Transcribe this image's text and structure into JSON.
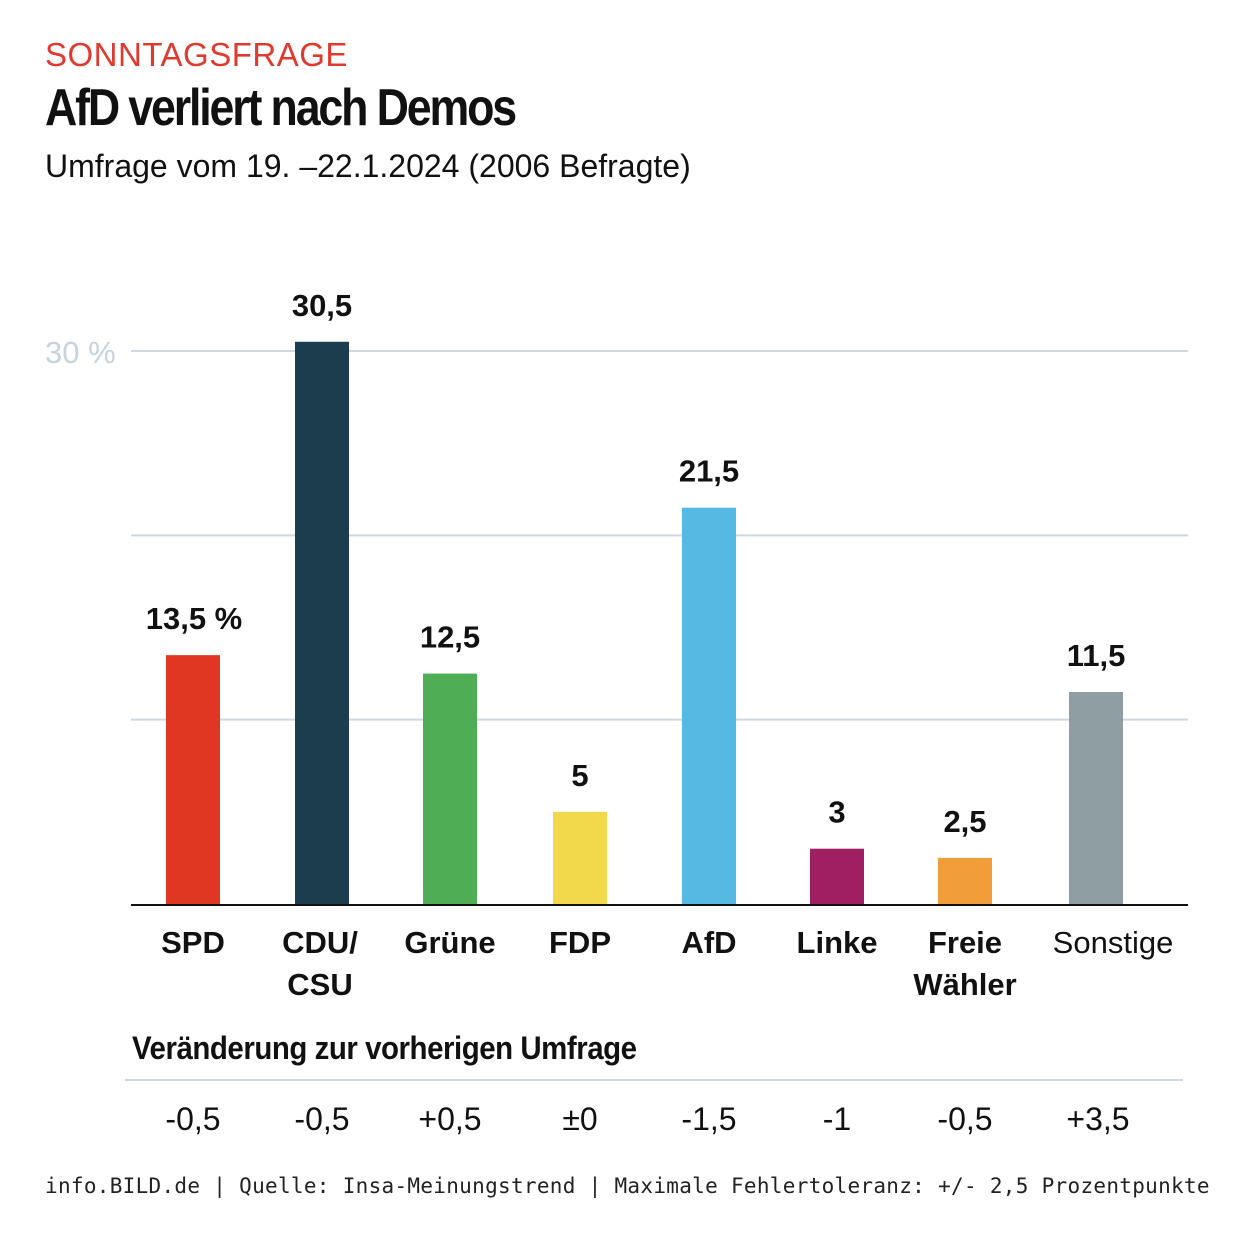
{
  "header": {
    "kicker": "SONNTAGSFRAGE",
    "title": "AfD verliert nach Demos",
    "subtitle": "Umfrage vom 19. –22.1.2024 (2006 Befragte)"
  },
  "chart_data": {
    "type": "bar",
    "title": "AfD verliert nach Demos",
    "subtitle": "Umfrage vom 19. –22.1.2024 (2006 Befragte)",
    "xlabel": "",
    "ylabel": "",
    "ylim": [
      0,
      30
    ],
    "yticks": [
      0,
      10,
      20,
      30
    ],
    "ytick_labels": [
      {
        "value": 30,
        "label": "30 %"
      }
    ],
    "grid": true,
    "categories": [
      "SPD",
      "CDU/CSU",
      "Grüne",
      "FDP",
      "AfD",
      "Linke",
      "Freie Wähler",
      "Sonstige"
    ],
    "category_lines": [
      [
        "SPD"
      ],
      [
        "CDU/",
        "CSU"
      ],
      [
        "Grüne"
      ],
      [
        "FDP"
      ],
      [
        "AfD"
      ],
      [
        "Linke"
      ],
      [
        "Freie",
        "Wähler"
      ],
      [
        "Sonstige"
      ]
    ],
    "category_bold": [
      true,
      true,
      true,
      true,
      true,
      true,
      true,
      false
    ],
    "values": [
      13.5,
      30.5,
      12.5,
      5,
      21.5,
      3,
      2.5,
      11.5
    ],
    "value_labels": [
      "13,5 %",
      "30,5",
      "12,5",
      "5",
      "21,5",
      "3",
      "2,5",
      "11,5"
    ],
    "colors": [
      "#e03722",
      "#1b3d4e",
      "#4fae55",
      "#f2d84b",
      "#56b9e3",
      "#a01f62",
      "#f19d3a",
      "#8e9ea2"
    ],
    "changes": {
      "title": "Veränderung zur vorherigen Umfrage",
      "values": [
        -0.5,
        -0.5,
        0.5,
        0,
        -1.5,
        -1,
        -0.5,
        3.5
      ],
      "labels": [
        "-0,5",
        "-0,5",
        "+0,5",
        "±0",
        "-1,5",
        "-1",
        "-0,5",
        "+3,5"
      ]
    }
  },
  "footer": "info.BILD.de | Quelle: Insa-Meinungstrend | Maximale Fehlertoleranz: +/- 2,5 Prozentpunkte"
}
